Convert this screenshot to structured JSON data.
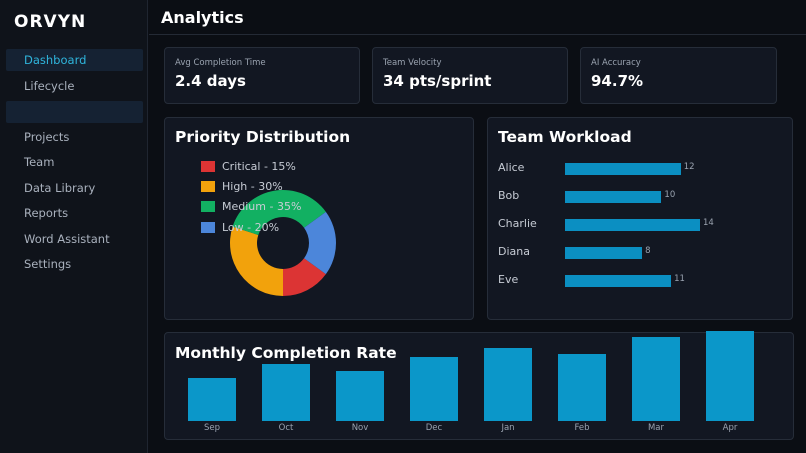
{
  "sidebar": {
    "brand": "ORVYN",
    "items": [
      {
        "label": "Dashboard"
      },
      {
        "label": "Lifecycle"
      },
      {
        "label": ""
      },
      {
        "label": "Projects"
      },
      {
        "label": "Team"
      },
      {
        "label": "Data Library"
      },
      {
        "label": "Reports"
      },
      {
        "label": "Word Assistant"
      },
      {
        "label": "Settings"
      }
    ]
  },
  "header": {
    "title": "Analytics"
  },
  "stats": [
    {
      "label": "Avg Completion Time",
      "value": "2.4 days"
    },
    {
      "label": "Team Velocity",
      "value": "34 pts/sprint"
    },
    {
      "label": "AI Accuracy",
      "value": "94.7%"
    }
  ],
  "priority": {
    "title": "Priority Distribution",
    "legend": [
      {
        "text": "Critical - 15%",
        "color": "#dc3434"
      },
      {
        "text": "High - 30%",
        "color": "#f2a20c"
      },
      {
        "text": "Medium - 35%",
        "color": "#12b062"
      },
      {
        "text": "Low - 20%",
        "color": "#4c86da"
      }
    ]
  },
  "workload": {
    "title": "Team Workload",
    "members": [
      {
        "name": "Alice",
        "value": "12"
      },
      {
        "name": "Bob",
        "value": "10"
      },
      {
        "name": "Charlie",
        "value": "14"
      },
      {
        "name": "Diana",
        "value": "8"
      },
      {
        "name": "Eve",
        "value": "11"
      }
    ]
  },
  "monthly": {
    "title": "Monthly Completion Rate",
    "months": [
      "Sep",
      "Oct",
      "Nov",
      "Dec",
      "Jan",
      "Feb",
      "Mar",
      "Apr"
    ]
  },
  "chart_data": [
    {
      "type": "pie",
      "title": "Priority Distribution",
      "categories": [
        "Critical",
        "High",
        "Medium",
        "Low"
      ],
      "values": [
        15,
        30,
        35,
        20
      ],
      "colors": [
        "#dc3434",
        "#f2a20c",
        "#12b062",
        "#4c86da"
      ]
    },
    {
      "type": "bar",
      "title": "Team Workload",
      "orientation": "horizontal",
      "categories": [
        "Alice",
        "Bob",
        "Charlie",
        "Diana",
        "Eve"
      ],
      "values": [
        12,
        10,
        14,
        8,
        11
      ],
      "xlim": [
        0,
        14
      ]
    },
    {
      "type": "bar",
      "title": "Monthly Completion Rate",
      "categories": [
        "Sep",
        "Oct",
        "Nov",
        "Dec",
        "Jan",
        "Feb",
        "Mar",
        "Apr"
      ],
      "values": [
        44,
        58,
        51,
        65,
        75,
        68,
        86,
        92
      ],
      "ylim": [
        0,
        100
      ]
    }
  ]
}
